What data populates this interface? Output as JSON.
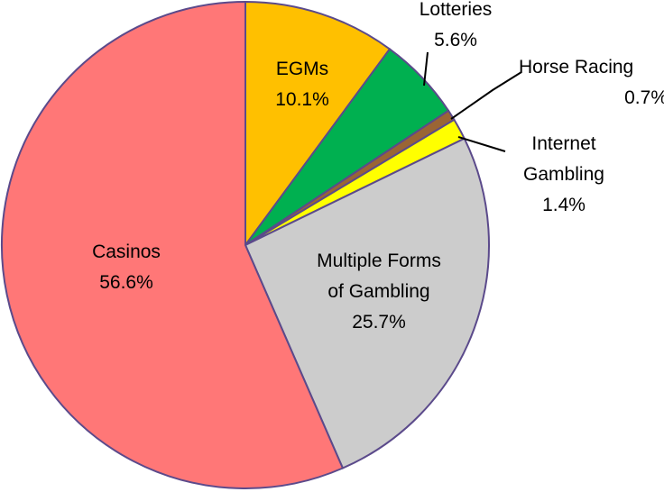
{
  "chart_data": {
    "type": "pie",
    "categories": [
      "EGMs",
      "Lotteries",
      "Horse Racing",
      "Internet Gambling",
      "Multiple Forms of Gambling",
      "Casinos"
    ],
    "values": [
      10.1,
      5.6,
      0.7,
      1.4,
      25.7,
      56.6
    ],
    "value_labels": [
      "10.1%",
      "5.6%",
      "0.7%",
      "1.4%",
      "25.7%",
      "56.6%"
    ],
    "colors": [
      "#ffc000",
      "#00b050",
      "#9a6535",
      "#ffff00",
      "#cccccc",
      "#ff7777"
    ]
  }
}
